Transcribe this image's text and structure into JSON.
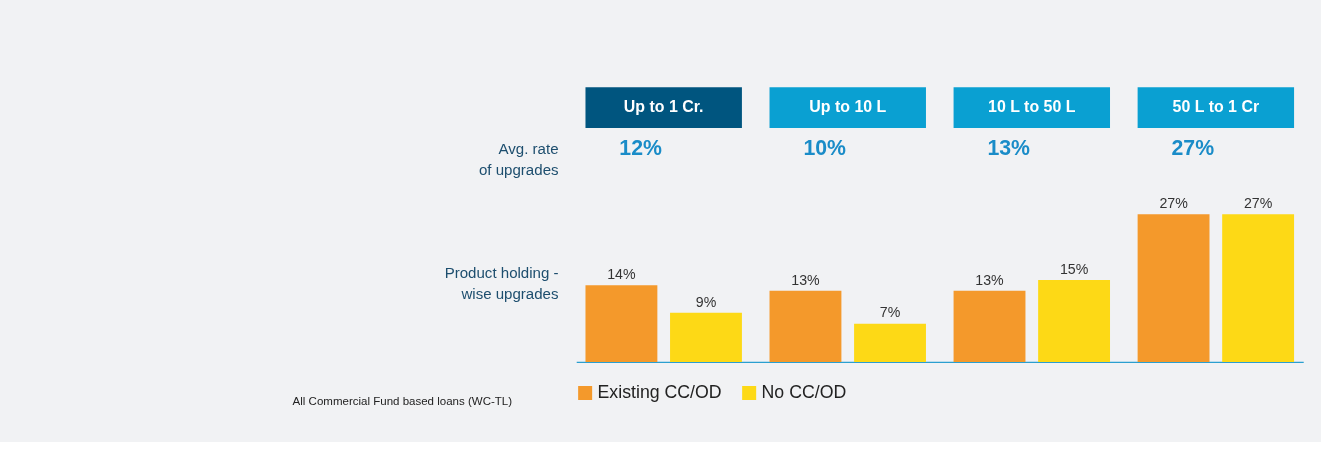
{
  "chart_data": {
    "type": "bar",
    "categories": [
      "Up to 1 Cr.",
      "Up to 10 L",
      "10 L to 50 L",
      "50 L to 1 Cr"
    ],
    "series": [
      {
        "name": "Existing CC/OD",
        "color": "#f4992b",
        "values": [
          14,
          13,
          13,
          27
        ],
        "value_labels": [
          "14%",
          "13%",
          "13%",
          "27%"
        ]
      },
      {
        "name": "No CC/OD",
        "color": "#fdd916",
        "values": [
          9,
          7,
          15,
          27
        ],
        "value_labels": [
          "9%",
          "7%",
          "15%",
          "27%"
        ]
      }
    ],
    "legend": "bottom",
    "grid": false,
    "annotations": [
      "Avg. rate of upgrades",
      "12%",
      "10%",
      "13%",
      "27%",
      "Product holding - wise upgrades",
      "All Commercial Fund based loans (WC-TL)"
    ]
  }
}
